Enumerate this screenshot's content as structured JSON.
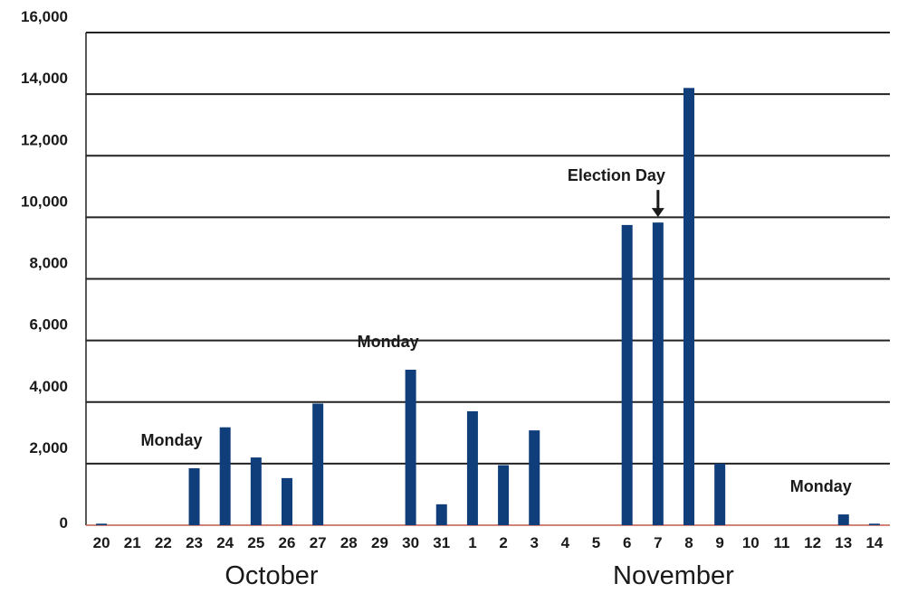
{
  "chart_data": {
    "type": "bar",
    "categories": [
      "20",
      "21",
      "22",
      "23",
      "24",
      "25",
      "26",
      "27",
      "28",
      "29",
      "30",
      "31",
      "1",
      "2",
      "3",
      "4",
      "5",
      "6",
      "7",
      "8",
      "9",
      "10",
      "11",
      "12",
      "13",
      "14"
    ],
    "values": [
      50,
      0,
      0,
      1850,
      3180,
      2200,
      1530,
      3950,
      0,
      0,
      5050,
      680,
      3700,
      1950,
      3080,
      0,
      0,
      9750,
      9830,
      14200,
      2000,
      0,
      0,
      0,
      350,
      50
    ],
    "ylim": [
      0,
      16000
    ],
    "yticks": [
      0,
      2000,
      4000,
      6000,
      8000,
      10000,
      12000,
      14000,
      16000
    ],
    "ytick_labels": [
      "0",
      "2,000",
      "4,000",
      "6,000",
      "8,000",
      "10,000",
      "12,000",
      "14,000",
      "16,000"
    ],
    "grid": true,
    "bar_color": "#0f3e7a",
    "baseline_color": "#c45a4a",
    "month_labels": [
      {
        "text": "October",
        "from_category": "20",
        "to_category": "31"
      },
      {
        "text": "November",
        "from_category": "1",
        "to_category": "14"
      }
    ],
    "annotations": [
      {
        "text": "Monday",
        "category": "23",
        "arrow": false
      },
      {
        "text": "Monday",
        "category": "30",
        "arrow": false
      },
      {
        "text": "Election Day",
        "category": "7",
        "arrow": true
      },
      {
        "text": "Monday",
        "category": "13",
        "arrow": false
      }
    ]
  }
}
